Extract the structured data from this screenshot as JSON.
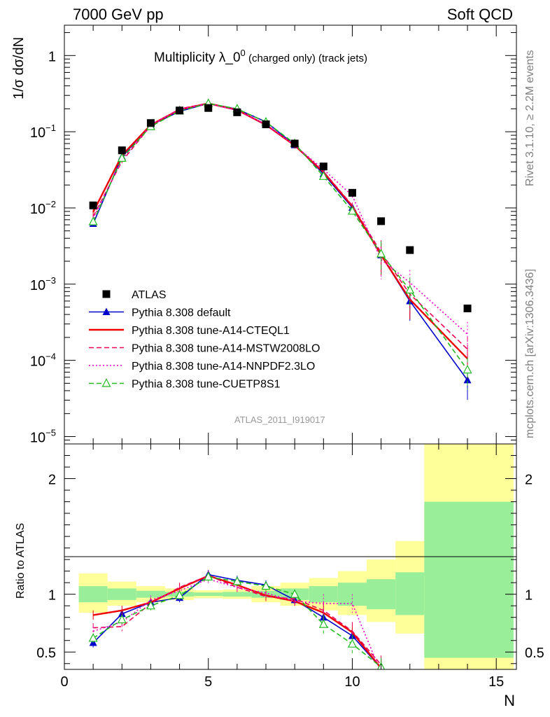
{
  "header": {
    "left": "7000 GeV pp",
    "right": "Soft QCD"
  },
  "side_labels": {
    "rivet": "Rivet 3.1.10, ≥ 2.2M events",
    "source": "mcplots.cern.ch [arXiv:1306.3436]"
  },
  "chart_data": [
    {
      "type": "scatter",
      "title": "Multiplicity λ_0",
      "title_sup": "0",
      "title_suffix": " (charged only) (track jets)",
      "ylabel": "1/σ dσ/dN",
      "yscale": "log",
      "ylim": [
        8e-06,
        2.5
      ],
      "xlim": [
        0,
        15.7
      ],
      "ytick_labels": [
        {
          "base": "10",
          "exp": "−5",
          "value": 1e-05
        },
        {
          "base": "10",
          "exp": "−4",
          "value": 0.0001
        },
        {
          "base": "10",
          "exp": "−3",
          "value": 0.001
        },
        {
          "base": "10",
          "exp": "−2",
          "value": 0.01
        },
        {
          "base": "10",
          "exp": "−1",
          "value": 0.1
        },
        {
          "base": "1",
          "exp": "",
          "value": 1
        }
      ],
      "watermark": "ATLAS_2011_I919017",
      "legend_position": "bottom-left",
      "x": [
        1,
        2,
        3,
        4,
        5,
        6,
        7,
        8,
        9,
        10,
        11,
        12,
        14
      ],
      "series": [
        {
          "name": "ATLAS",
          "color": "#000000",
          "marker": "square",
          "line": "none",
          "values": [
            0.0108,
            0.057,
            0.13,
            0.19,
            0.205,
            0.18,
            0.125,
            0.07,
            0.035,
            0.0158,
            0.0067,
            0.0028,
            0.00048
          ]
        },
        {
          "name": "Pythia 8.308 default",
          "color": "#0000cc",
          "marker": "triangle",
          "line": "solid",
          "values": [
            0.0062,
            0.047,
            0.122,
            0.185,
            0.235,
            0.198,
            0.135,
            0.067,
            0.028,
            0.0101,
            0.0024,
            0.0006,
            5.5e-05
          ]
        },
        {
          "name": "Pythia 8.308 tune-A14-CTEQL1",
          "color": "#ee0000",
          "marker": "none",
          "line": "solid",
          "values": [
            0.0088,
            0.049,
            0.123,
            0.195,
            0.236,
            0.193,
            0.123,
            0.066,
            0.0295,
            0.0105,
            0.0024,
            0.00063,
            0.000105
          ]
        },
        {
          "name": "Pythia 8.308 tune-A14-MSTW2008LO",
          "color": "#ee0055",
          "marker": "none",
          "line": "dashed",
          "values": [
            0.0077,
            0.041,
            0.12,
            0.2,
            0.237,
            0.191,
            0.122,
            0.067,
            0.0301,
            0.0108,
            0.0026,
            0.00074,
            0.00014
          ]
        },
        {
          "name": "Pythia 8.308 tune-A14-NNPDF2.3LO",
          "color": "#ee00cc",
          "marker": "none",
          "line": "dotted",
          "values": [
            0.0073,
            0.043,
            0.124,
            0.196,
            0.232,
            0.191,
            0.126,
            0.066,
            0.032,
            0.0145,
            0.0021,
            0.00105,
            0.00022
          ]
        },
        {
          "name": "Pythia 8.308 tune-CUETP8S1",
          "color": "#22bb22",
          "marker": "open-triangle",
          "line": "dashed",
          "values": [
            0.0066,
            0.045,
            0.117,
            0.188,
            0.235,
            0.2,
            0.134,
            0.07,
            0.026,
            0.0091,
            0.0025,
            0.00084,
            7.5e-05
          ]
        }
      ]
    },
    {
      "type": "scatter",
      "ylabel": "Ratio to ATLAS",
      "xlabel": "N",
      "ylim": [
        0.35,
        2.3
      ],
      "xlim": [
        0,
        15.7
      ],
      "xtick_labels": [
        "0",
        "5",
        "10",
        "15"
      ],
      "ytick_labels": [
        "0.5",
        "1",
        "2"
      ],
      "reference_line": 1,
      "bands": [
        {
          "x0": 0.5,
          "x1": 1.5,
          "green": [
            0.93,
            1.07
          ],
          "yellow": [
            0.84,
            1.18
          ]
        },
        {
          "x0": 1.5,
          "x1": 2.5,
          "green": [
            0.95,
            1.05
          ],
          "yellow": [
            0.9,
            1.11
          ]
        },
        {
          "x0": 2.5,
          "x1": 3.5,
          "green": [
            0.97,
            1.03
          ],
          "yellow": [
            0.93,
            1.07
          ]
        },
        {
          "x0": 3.5,
          "x1": 4.5,
          "green": [
            0.98,
            1.02
          ],
          "yellow": [
            0.95,
            1.05
          ]
        },
        {
          "x0": 4.5,
          "x1": 5.5,
          "green": [
            0.985,
            1.015
          ],
          "yellow": [
            0.965,
            1.035
          ]
        },
        {
          "x0": 5.5,
          "x1": 6.5,
          "green": [
            0.98,
            1.02
          ],
          "yellow": [
            0.96,
            1.04
          ]
        },
        {
          "x0": 6.5,
          "x1": 7.5,
          "green": [
            0.97,
            1.03
          ],
          "yellow": [
            0.93,
            1.07
          ]
        },
        {
          "x0": 7.5,
          "x1": 8.5,
          "green": [
            0.95,
            1.05
          ],
          "yellow": [
            0.9,
            1.1
          ]
        },
        {
          "x0": 8.5,
          "x1": 9.5,
          "green": [
            0.93,
            1.07
          ],
          "yellow": [
            0.86,
            1.14
          ]
        },
        {
          "x0": 9.5,
          "x1": 10.5,
          "green": [
            0.9,
            1.1
          ],
          "yellow": [
            0.82,
            1.2
          ]
        },
        {
          "x0": 10.5,
          "x1": 11.5,
          "green": [
            0.87,
            1.13
          ],
          "yellow": [
            0.76,
            1.3
          ]
        },
        {
          "x0": 11.5,
          "x1": 12.5,
          "green": [
            0.82,
            1.19
          ],
          "yellow": [
            0.66,
            1.46
          ]
        },
        {
          "x0": 12.5,
          "x1": 15.6,
          "green": [
            0.45,
            1.8
          ],
          "yellow": [
            0.3,
            2.5
          ]
        }
      ],
      "series": [
        {
          "name": "Pythia 8.308 default",
          "values": [
            0.58,
            0.83,
            0.93,
            0.97,
            1.17,
            1.12,
            1.08,
            0.95,
            0.8,
            0.64,
            0.36
          ]
        },
        {
          "name": "Pythia 8.308 tune-A14-CTEQL1",
          "values": [
            0.82,
            0.86,
            0.93,
            1.05,
            1.16,
            1.08,
            0.99,
            0.94,
            0.84,
            0.67,
            0.36
          ]
        },
        {
          "name": "Pythia 8.308 tune-A14-MSTW2008LO",
          "values": [
            0.71,
            0.72,
            0.92,
            1.06,
            1.16,
            1.06,
            0.98,
            0.96,
            0.86,
            0.68,
            0.39
          ]
        },
        {
          "name": "Pythia 8.308 tune-A14-NNPDF2.3LO",
          "values": [
            0.68,
            0.76,
            0.95,
            1.03,
            1.13,
            1.06,
            1.01,
            0.94,
            0.92,
            0.92,
            0.32
          ]
        },
        {
          "name": "Pythia 8.308 tune-CUETP8S1",
          "values": [
            0.62,
            0.78,
            0.9,
            0.99,
            1.15,
            1.11,
            1.07,
            1.0,
            0.74,
            0.57,
            0.37
          ]
        }
      ]
    }
  ]
}
